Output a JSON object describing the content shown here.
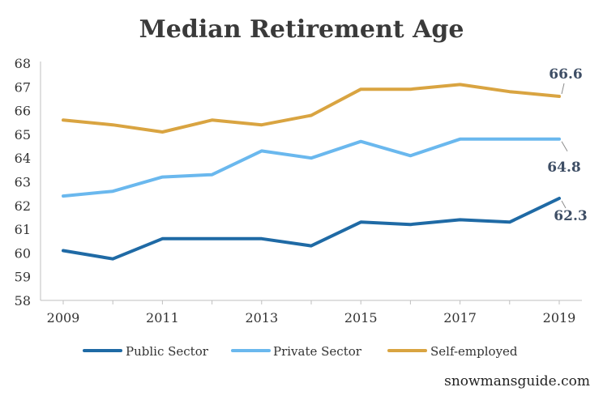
{
  "chart_data": {
    "type": "line",
    "title": "Median Retirement Age",
    "x": [
      2009,
      2010,
      2011,
      2012,
      2013,
      2014,
      2015,
      2016,
      2017,
      2018,
      2019
    ],
    "x_tick_labels": [
      "2009",
      "2011",
      "2013",
      "2015",
      "2017",
      "2019"
    ],
    "y_tick_labels": [
      "58",
      "59",
      "60",
      "61",
      "62",
      "63",
      "64",
      "65",
      "66",
      "67",
      "68"
    ],
    "ylim": [
      58,
      68
    ],
    "grid": false,
    "legend_position": "bottom",
    "series": [
      {
        "name": "Public Sector",
        "color": "#1f6aa5",
        "values": [
          60.1,
          59.75,
          60.6,
          60.6,
          60.6,
          60.3,
          61.3,
          61.2,
          61.4,
          61.3,
          62.3
        ],
        "end_label": "62.3"
      },
      {
        "name": "Private Sector",
        "color": "#6ab8ee",
        "values": [
          62.4,
          62.6,
          63.2,
          63.3,
          64.3,
          64.0,
          64.7,
          64.1,
          64.8,
          64.8,
          64.8
        ],
        "end_label": "64.8"
      },
      {
        "name": "Self-employed",
        "color": "#d9a441",
        "values": [
          65.6,
          65.4,
          65.1,
          65.6,
          65.4,
          65.8,
          66.9,
          66.9,
          67.1,
          66.8,
          66.6
        ],
        "end_label": "66.6"
      }
    ]
  },
  "footer": {
    "credit": "snowmansguide.com"
  }
}
